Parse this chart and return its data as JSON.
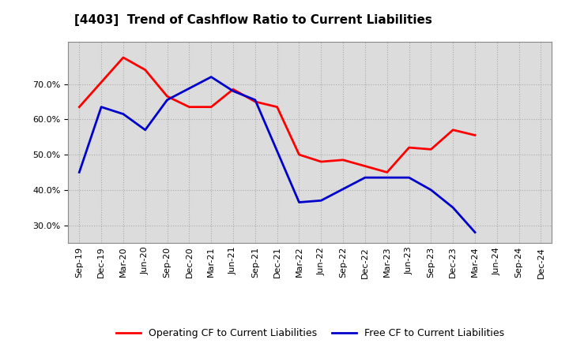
{
  "title": "[4403]  Trend of Cashflow Ratio to Current Liabilities",
  "x_labels": [
    "Sep-19",
    "Dec-19",
    "Mar-20",
    "Jun-20",
    "Sep-20",
    "Dec-20",
    "Mar-21",
    "Jun-21",
    "Sep-21",
    "Dec-21",
    "Mar-22",
    "Jun-22",
    "Sep-22",
    "Dec-22",
    "Mar-23",
    "Jun-23",
    "Sep-23",
    "Dec-23",
    "Mar-24",
    "Jun-24",
    "Sep-24",
    "Dec-24"
  ],
  "op_cf_points": {
    "Sep-19": 63.5,
    "Mar-20": 77.5,
    "Jun-20": 74.0,
    "Sep-20": 66.5,
    "Dec-20": 63.5,
    "Mar-21": 63.5,
    "Jun-21": 68.5,
    "Sep-21": 65.0,
    "Dec-21": 63.5,
    "Mar-22": 50.0,
    "Jun-22": 48.0,
    "Sep-22": 48.5,
    "Mar-23": 45.0,
    "Jun-23": 52.0,
    "Sep-23": 51.5,
    "Dec-23": 57.0,
    "Mar-24": 55.5
  },
  "free_cf_points": {
    "Sep-19": 45.0,
    "Dec-19": 63.5,
    "Mar-20": 61.5,
    "Jun-20": 57.0,
    "Sep-20": 65.5,
    "Mar-21": 72.0,
    "Jun-21": 68.0,
    "Sep-21": 65.5,
    "Mar-22": 36.5,
    "Jun-22": 37.0,
    "Dec-22": 43.5,
    "Mar-23": 43.5,
    "Jun-23": 43.5,
    "Sep-23": 40.0,
    "Dec-23": 35.0,
    "Mar-24": 28.0
  },
  "operating_cf_color": "#FF0000",
  "free_cf_color": "#0000CC",
  "background_color": "#FFFFFF",
  "plot_bg_color": "#DCDCDC",
  "grid_color": "#AAAAAA",
  "ylim_min": 25.0,
  "ylim_max": 82.0,
  "yticks": [
    30.0,
    40.0,
    50.0,
    60.0,
    70.0
  ],
  "legend_labels": [
    "Operating CF to Current Liabilities",
    "Free CF to Current Liabilities"
  ],
  "line_width": 2.0,
  "title_fontsize": 11,
  "tick_fontsize": 8,
  "legend_fontsize": 9
}
